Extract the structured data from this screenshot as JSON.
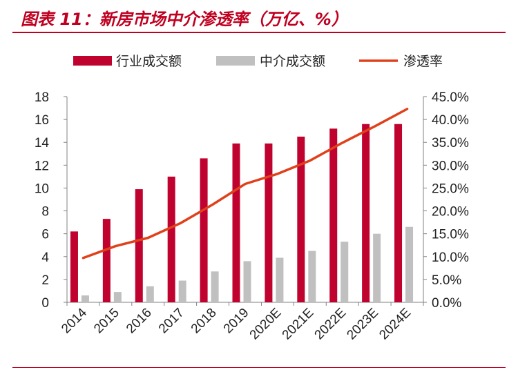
{
  "header": {
    "title": "图表 11：新房市场中介渗透率（万亿、%）"
  },
  "colors": {
    "accent": "#c00020",
    "bar_total": "#c0022f",
    "bar_agency": "#c0c0c0",
    "line": "#e0401a",
    "axis": "#808080"
  },
  "chart_data": {
    "type": "bar",
    "categories": [
      "2014",
      "2015",
      "2016",
      "2017",
      "2018",
      "2019",
      "2020E",
      "2021E",
      "2022E",
      "2023E",
      "2024E"
    ],
    "series": [
      {
        "name": "行业成交额",
        "kind": "bar",
        "axis": "left",
        "values": [
          6.2,
          7.3,
          9.9,
          11.0,
          12.6,
          13.9,
          13.9,
          14.5,
          15.2,
          15.6,
          15.6
        ]
      },
      {
        "name": "中介成交额",
        "kind": "bar",
        "axis": "left",
        "values": [
          0.6,
          0.9,
          1.4,
          1.9,
          2.7,
          3.6,
          3.9,
          4.5,
          5.3,
          6.0,
          6.6
        ]
      },
      {
        "name": "渗透率",
        "kind": "line",
        "axis": "right",
        "values": [
          9.7,
          12.3,
          14.1,
          17.3,
          21.4,
          25.9,
          28.1,
          31.0,
          34.9,
          38.5,
          42.3
        ]
      }
    ],
    "ylim": [
      0,
      18
    ],
    "yticks": [
      "0",
      "2",
      "4",
      "6",
      "8",
      "10",
      "12",
      "14",
      "16",
      "18"
    ],
    "y2lim": [
      0,
      45
    ],
    "y2ticks": [
      "0.0%",
      "5.0%",
      "10.0%",
      "15.0%",
      "20.0%",
      "25.0%",
      "30.0%",
      "35.0%",
      "40.0%",
      "45.0%"
    ],
    "xlabel": "",
    "ylabel": "",
    "grid": false,
    "legend_position": "top"
  }
}
